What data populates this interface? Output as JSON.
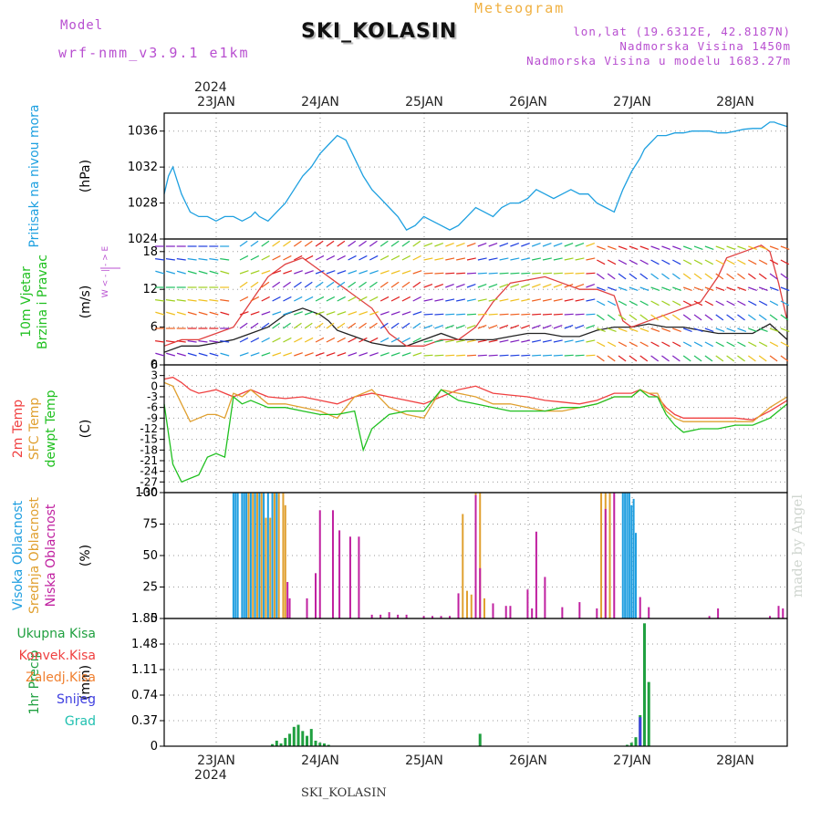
{
  "header": {
    "model_label": "Model",
    "model_value": "wrf-nmm_v3.9.1 e1km",
    "title": "SKI_KOLASIN",
    "meteogram_label": "Meteogram",
    "lonlat": "lon,lat (19.6312E, 42.8187N)",
    "elevation": "Nadmorska Visina 1450m",
    "elevation_model": "Nadmorska Visina u modelu 1683.27m"
  },
  "footer": {
    "station": "SKI_KOLASIN",
    "credit": "made by Angel"
  },
  "colors": {
    "pressure": "#1ea0e0",
    "temp2m": "#f04040",
    "sfc_temp": "#e0a030",
    "dewpoint": "#20c020",
    "high_cloud": "#1e9ee0",
    "mid_cloud": "#e0a030",
    "low_cloud": "#c020a0",
    "total_precip": "#20a040",
    "conv_precip": "#f04040",
    "frozen_precip": "#f08030",
    "snow": "#4040e0",
    "graupel": "#20c0b0"
  },
  "chart_data": {
    "type": "line",
    "x_axis": {
      "year": "2024",
      "tick_labels": [
        "23JAN",
        "24JAN",
        "25JAN",
        "26JAN",
        "27JAN",
        "28JAN"
      ],
      "range_hours": [
        0,
        144
      ]
    },
    "panels": [
      {
        "id": "pressure",
        "ylabel_lines": [
          "Pritisak na nivou mora"
        ],
        "unit": "(hPa)",
        "ylim": [
          1024,
          1038
        ],
        "yticks": [
          "1024",
          "1028",
          "1032",
          "1036"
        ],
        "series": [
          {
            "key": "pressure",
            "x": [
              0,
              1,
              2,
              3,
              4,
              5,
              6,
              8,
              10,
              12,
              14,
              16,
              18,
              20,
              21,
              22,
              24,
              26,
              28,
              30,
              32,
              34,
              36,
              38,
              40,
              42,
              44,
              46,
              48,
              50,
              52,
              54,
              56,
              58,
              60,
              62,
              64,
              66,
              68,
              70,
              72,
              74,
              76,
              78,
              80,
              82,
              84,
              86,
              88,
              90,
              92,
              94,
              96,
              98,
              100,
              102,
              104,
              106,
              108,
              110,
              111,
              112,
              113,
              114,
              116,
              118,
              120,
              122,
              124,
              126,
              128,
              130,
              132,
              134,
              136,
              138,
              140,
              141,
              142,
              144
            ],
            "values": [
              1029.0,
              1031.0,
              1032.0,
              1030.5,
              1029.0,
              1028.0,
              1027.0,
              1026.5,
              1026.5,
              1026.0,
              1026.5,
              1026.5,
              1026.0,
              1026.5,
              1027.0,
              1026.5,
              1026.0,
              1027.0,
              1028.0,
              1029.5,
              1031.0,
              1032.0,
              1033.5,
              1034.5,
              1035.5,
              1035.0,
              1033.0,
              1031.0,
              1029.5,
              1028.5,
              1027.5,
              1026.5,
              1025.0,
              1025.5,
              1026.5,
              1026.0,
              1025.5,
              1025.0,
              1025.5,
              1026.5,
              1027.5,
              1027.0,
              1026.5,
              1027.5,
              1028.0,
              1028.0,
              1028.5,
              1029.5,
              1029.0,
              1028.5,
              1029.0,
              1029.5,
              1029.0,
              1029.0,
              1028.0,
              1027.5,
              1027.0,
              1029.5,
              1031.5,
              1033.0,
              1034.0,
              1034.5,
              1035.0,
              1035.5,
              1035.5,
              1035.8,
              1035.8,
              1036.0,
              1036.0,
              1036.0,
              1035.8,
              1035.8,
              1036.0,
              1036.2,
              1036.3,
              1036.3,
              1037.0,
              1037.0,
              1036.8,
              1036.5
            ]
          }
        ]
      },
      {
        "id": "wind",
        "ylabel_lines": [
          "10m Vjetar",
          "Brzina i Pravac"
        ],
        "unit": "(m/s)",
        "compass": "W < - | - > E",
        "ylim": [
          0,
          20
        ],
        "yticks": [
          "0",
          "6",
          "12",
          "18"
        ],
        "series": [
          {
            "key": "wind_speed",
            "x": [
              0,
              4,
              8,
              12,
              16,
              20,
              24,
              28,
              32,
              34,
              36,
              38,
              40,
              42,
              44,
              46,
              48,
              52,
              56,
              60,
              64,
              68,
              72,
              76,
              80,
              84,
              88,
              92,
              96,
              100,
              104,
              108,
              112,
              116,
              120,
              124,
              128,
              132,
              136,
              140,
              144
            ],
            "values": [
              2,
              3,
              3,
              3.5,
              4,
              5,
              6,
              8,
              9,
              8.5,
              8,
              7,
              5.5,
              5,
              4.5,
              4,
              3.5,
              3,
              3,
              4,
              5,
              4,
              4,
              4,
              4.5,
              5,
              5,
              4.5,
              4.5,
              5.5,
              6,
              6,
              6.5,
              6,
              6,
              5.5,
              5,
              5,
              5,
              6.5,
              4
            ]
          },
          {
            "key": "wind_gust",
            "x": [
              0,
              4,
              8,
              12,
              16,
              20,
              24,
              28,
              32,
              36,
              40,
              44,
              48,
              52,
              56,
              60,
              64,
              68,
              72,
              76,
              80,
              84,
              88,
              92,
              96,
              100,
              104,
              106,
              108,
              112,
              116,
              120,
              124,
              128,
              130,
              134,
              138,
              140,
              142,
              144
            ],
            "values": [
              3,
              4,
              4,
              5,
              6,
              10,
              14,
              16,
              17,
              15,
              13,
              11,
              9,
              5,
              3,
              3,
              4,
              4,
              6,
              10,
              13,
              13.5,
              14,
              13,
              12,
              12,
              11,
              7,
              6,
              7,
              8,
              9,
              10,
              14,
              17,
              18,
              19,
              18,
              13,
              7
            ]
          }
        ]
      },
      {
        "id": "temperature",
        "ylabel_lines": [
          "2m Temp",
          "SFC Temp",
          "dewpt Temp"
        ],
        "unit": "(C)",
        "ylim": [
          -30,
          6
        ],
        "yticks": [
          "6",
          "3",
          "0",
          "-3",
          "-6",
          "-9",
          "-12",
          "-15",
          "-18",
          "-21",
          "-24",
          "-27",
          "-30"
        ],
        "series": [
          {
            "key": "temp2m",
            "x": [
              0,
              2,
              4,
              6,
              8,
              10,
              12,
              14,
              16,
              18,
              20,
              22,
              24,
              28,
              32,
              36,
              40,
              44,
              48,
              52,
              56,
              60,
              64,
              68,
              72,
              76,
              80,
              84,
              88,
              92,
              96,
              100,
              104,
              108,
              110,
              112,
              114,
              116,
              118,
              120,
              124,
              128,
              132,
              136,
              140,
              144
            ],
            "values": [
              2,
              2.5,
              1,
              -1,
              -2,
              -1.5,
              -1,
              -2,
              -3,
              -2,
              -1,
              -2,
              -3,
              -3.5,
              -3,
              -4,
              -5,
              -3,
              -2,
              -3,
              -4,
              -5,
              -3,
              -1,
              0,
              -2,
              -2.5,
              -3,
              -4,
              -4.5,
              -5,
              -4,
              -2,
              -2,
              -1,
              -2,
              -3,
              -6,
              -8,
              -9,
              -9,
              -9,
              -9,
              -9.5,
              -7,
              -4
            ]
          },
          {
            "key": "sfc_temp",
            "x": [
              0,
              2,
              4,
              6,
              8,
              10,
              12,
              14,
              16,
              18,
              20,
              22,
              24,
              28,
              32,
              36,
              40,
              44,
              48,
              52,
              56,
              60,
              64,
              68,
              72,
              76,
              80,
              84,
              88,
              92,
              96,
              100,
              104,
              108,
              110,
              112,
              114,
              116,
              118,
              120,
              124,
              128,
              132,
              136,
              140,
              144
            ],
            "values": [
              1,
              0,
              -5,
              -10,
              -9,
              -8,
              -8,
              -9,
              -2,
              -3,
              -1,
              -3,
              -5,
              -5,
              -6,
              -7,
              -9,
              -3,
              -1,
              -6,
              -8,
              -9,
              -1,
              -2,
              -3,
              -5,
              -5,
              -6,
              -7,
              -7,
              -6,
              -5,
              -3,
              -3,
              -1,
              -2,
              -2,
              -7,
              -9,
              -10,
              -10,
              -10,
              -10,
              -10,
              -6,
              -3
            ]
          },
          {
            "key": "dewpoint",
            "x": [
              0,
              2,
              4,
              6,
              8,
              10,
              12,
              14,
              16,
              18,
              20,
              22,
              24,
              28,
              32,
              36,
              40,
              44,
              46,
              48,
              52,
              56,
              60,
              64,
              68,
              72,
              76,
              80,
              84,
              88,
              92,
              96,
              100,
              104,
              108,
              110,
              112,
              114,
              116,
              118,
              120,
              124,
              128,
              132,
              136,
              140,
              144
            ],
            "values": [
              -5,
              -22,
              -27,
              -26,
              -25,
              -20,
              -19,
              -20,
              -3,
              -5,
              -4,
              -5,
              -6,
              -6,
              -7,
              -8,
              -8,
              -7,
              -18,
              -12,
              -8,
              -7,
              -7,
              -1,
              -4,
              -5,
              -6,
              -7,
              -7,
              -7,
              -6,
              -6,
              -5,
              -3,
              -3,
              -1,
              -3,
              -3,
              -8,
              -11,
              -13,
              -12,
              -12,
              -11,
              -11,
              -9,
              -5
            ]
          }
        ]
      },
      {
        "id": "cloud",
        "ylabel_lines": [
          "Visoka Oblacnost",
          "Srednja Oblacnost",
          "Niska Oblacnost"
        ],
        "unit": "(%)",
        "ylim": [
          0,
          100
        ],
        "yticks": [
          "0",
          "25",
          "50",
          "75",
          "100"
        ],
        "bars": [
          {
            "key": "high_cloud",
            "x": [
              16,
              16.5,
              17,
              18,
              18.5,
              19,
              20,
              21,
              22,
              23,
              24,
              25,
              26,
              106,
              106.5,
              107,
              107.5,
              108,
              108.5,
              109
            ],
            "values": [
              100,
              100,
              100,
              100,
              100,
              100,
              100,
              100,
              100,
              100,
              100,
              100,
              100,
              100,
              100,
              100,
              100,
              90,
              95,
              68
            ]
          },
          {
            "key": "mid_cloud",
            "x": [
              19.5,
              20.5,
              21.5,
              22.5,
              23.5,
              24.5,
              25.5,
              26.5,
              27.5,
              28,
              69,
              70,
              71,
              72,
              73,
              74,
              101,
              102,
              103
            ],
            "values": [
              100,
              100,
              100,
              100,
              80,
              80,
              100,
              100,
              100,
              90,
              83,
              22,
              19,
              100,
              100,
              16,
              100,
              100,
              100
            ]
          },
          {
            "key": "low_cloud",
            "x": [
              28.5,
              29,
              33,
              35,
              36,
              39,
              40.5,
              43,
              45,
              48,
              50,
              52,
              54,
              56,
              60,
              62,
              64,
              66,
              68,
              72,
              73,
              76,
              79,
              80,
              84,
              85,
              86,
              88,
              92,
              96,
              100,
              102,
              104,
              110,
              112,
              126,
              128,
              140,
              142,
              143
            ],
            "values": [
              29,
              16,
              16,
              36,
              86,
              86,
              70,
              65,
              65,
              3,
              3,
              5,
              3,
              3,
              2,
              2,
              2,
              2,
              20,
              98,
              40,
              12,
              10,
              10,
              23,
              8,
              69,
              33,
              9,
              13,
              8,
              87,
              100,
              17,
              9,
              2,
              8,
              2,
              10,
              8
            ]
          }
        ]
      },
      {
        "id": "precip",
        "ylabel_lines": [
          "1hr Precip"
        ],
        "unit": "(mm)",
        "legend": [
          "Ukupna Kisa",
          "Konvek.Kisa",
          "Zaledj.Kisa",
          "Snijeg",
          "Grad"
        ],
        "ylim": [
          0,
          1.85
        ],
        "yticks": [
          "0",
          "0.37",
          "0.74",
          "1.11",
          "1.48",
          "1.85"
        ],
        "bars": [
          {
            "key": "total_precip",
            "x": [
              25,
              26,
              27,
              28,
              29,
              30,
              31,
              32,
              33,
              34,
              35,
              36,
              37,
              38,
              73,
              107,
              108,
              109,
              110,
              111,
              112
            ],
            "values": [
              0.03,
              0.08,
              0.04,
              0.12,
              0.18,
              0.28,
              0.31,
              0.22,
              0.15,
              0.25,
              0.08,
              0.05,
              0.04,
              0.02,
              0.18,
              0.02,
              0.05,
              0.13,
              0.45,
              1.78,
              0.93
            ]
          },
          {
            "key": "snow",
            "x": [
              110
            ],
            "values": [
              0.42
            ]
          }
        ]
      }
    ]
  }
}
